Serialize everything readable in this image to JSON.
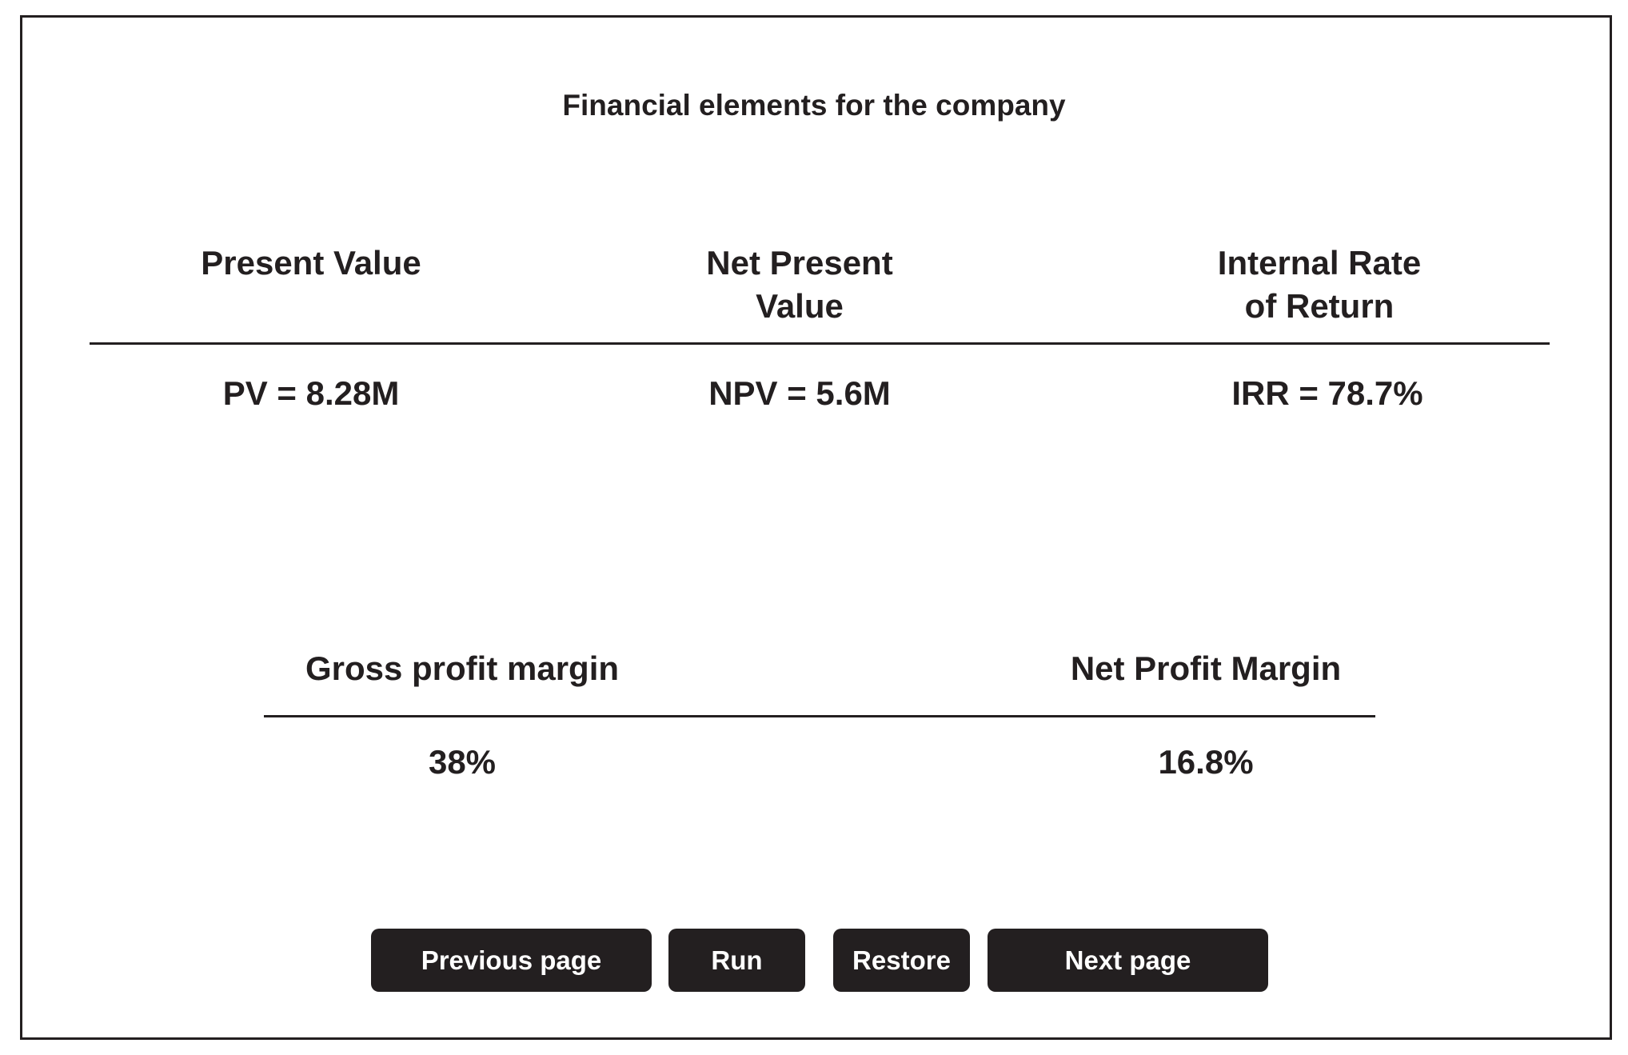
{
  "title": "Financial elements for the company",
  "top_section": {
    "present_value": {
      "label_line1": "Present Value",
      "label_line2": "",
      "value": "PV = 8.28M"
    },
    "net_present_value": {
      "label_line1": "Net Present",
      "label_line2": "Value",
      "value": "NPV = 5.6M"
    },
    "internal_rate_of_return": {
      "label_line1": "Internal Rate",
      "label_line2": "of Return",
      "value": "IRR = 78.7%"
    }
  },
  "bottom_section": {
    "gross_profit_margin": {
      "label": "Gross profit margin",
      "value": "38%"
    },
    "net_profit_margin": {
      "label": "Net Profit Margin",
      "value": "16.8%"
    }
  },
  "buttons": {
    "previous": "Previous page",
    "run": "Run",
    "restore": "Restore",
    "next": "Next page"
  }
}
